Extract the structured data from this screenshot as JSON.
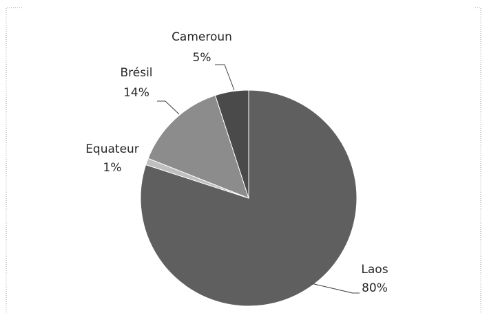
{
  "chart_data": {
    "type": "pie",
    "title": "",
    "start_angle_deg": 0,
    "direction": "clockwise",
    "slices": [
      {
        "label": "Laos",
        "value": 80,
        "value_label": "80%",
        "color": "#5f5f5f",
        "label_position": "bottom-right"
      },
      {
        "label": "Equateur",
        "value": 1,
        "value_label": "1%",
        "color": "#bfbfbf",
        "label_position": "left"
      },
      {
        "label": "Brésil",
        "value": 14,
        "value_label": "14%",
        "color": "#8c8c8c",
        "label_position": "top-left"
      },
      {
        "label": "Cameroun",
        "value": 5,
        "value_label": "5%",
        "color": "#4a4a4a",
        "label_position": "top"
      }
    ],
    "legend": "none",
    "data_labels": "outside, category name and percentage"
  }
}
